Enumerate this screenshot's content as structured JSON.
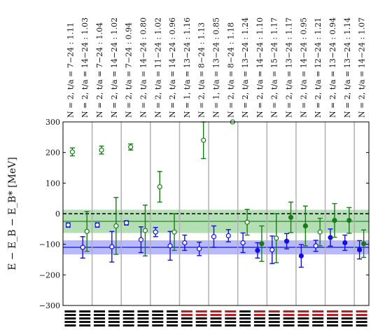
{
  "chart_data": {
    "type": "scatter",
    "title": "",
    "xlabel": "",
    "ylabel": "E − E_B − E_B* [MeV]",
    "ylim": [
      -300,
      300
    ],
    "yticks": [
      "−300",
      "−200",
      "−100",
      "0",
      "100",
      "200",
      "300"
    ],
    "grid": false,
    "colors": {
      "blue": "#1010e0",
      "green": "#1a7a1a",
      "band_blue": "#8080ff",
      "band_green": "#77c477",
      "frame": "#000000",
      "sep": "#b0b0b0"
    },
    "bands": [
      {
        "name": "",
        "color": "blue",
        "center": -110,
        "low": -133,
        "high": -87
      },
      {
        "name": "",
        "color": "green",
        "center": -25,
        "low": -63,
        "high": 13
      }
    ],
    "reference_line": 0,
    "fits": [
      {
        "label": "N = 2, t/a = 7−24 : 1.11",
        "points": [
          {
            "color": "blue",
            "y": -37,
            "err": 7,
            "filled": false
          },
          {
            "color": "green",
            "y": 202,
            "err": 13,
            "filled": false
          }
        ]
      },
      {
        "label": "N = 2, t/a = 14−24 : 1.03",
        "points": [
          {
            "color": "blue",
            "y": -110,
            "err": 35,
            "filled": false
          },
          {
            "color": "green",
            "y": -58,
            "err": 65,
            "filled": false
          }
        ]
      },
      {
        "label": "N = 2, t/a = 7−24 : 1.04",
        "points": [
          {
            "color": "blue",
            "y": -37,
            "err": 7,
            "filled": false
          },
          {
            "color": "green",
            "y": 208,
            "err": 13,
            "filled": false
          }
        ]
      },
      {
        "label": "N = 2, t/a = 14−24 : 1.02",
        "points": [
          {
            "color": "blue",
            "y": -108,
            "err": 50,
            "filled": false
          },
          {
            "color": "green",
            "y": -40,
            "err": 93,
            "filled": false
          }
        ]
      },
      {
        "label": "N = 2, t/a = 7−24 : 0.94",
        "points": [
          {
            "color": "blue",
            "y": -30,
            "err": 7,
            "filled": false
          },
          {
            "color": "green",
            "y": 218,
            "err": 10,
            "filled": false
          }
        ]
      },
      {
        "label": "N = 2, t/a = 14−24 : 0.80",
        "points": [
          {
            "color": "blue",
            "y": -85,
            "err": 42,
            "filled": false
          },
          {
            "color": "green",
            "y": -55,
            "err": 83,
            "filled": false
          }
        ]
      },
      {
        "label": "N = 2, t/a = 11−24 : 1.02",
        "points": [
          {
            "color": "blue",
            "y": -60,
            "err": 15,
            "filled": false
          },
          {
            "color": "green",
            "y": 88,
            "err": 50,
            "filled": false
          }
        ]
      },
      {
        "label": "N = 2, t/a = 14−24 : 0.96",
        "points": [
          {
            "color": "blue",
            "y": -105,
            "err": 47,
            "filled": false
          },
          {
            "color": "green",
            "y": -60,
            "err": 60,
            "filled": false
          }
        ]
      },
      {
        "label": "N = 1, t/a = 13−24 : 1.16",
        "points": [
          {
            "color": "blue",
            "y": -95,
            "err": 25,
            "filled": false
          }
        ]
      },
      {
        "label": "N = 2, t/a = 8−24 : 1.13",
        "points": [
          {
            "color": "blue",
            "y": -115,
            "err": 22,
            "filled": false
          },
          {
            "color": "green",
            "y": 240,
            "err": 60,
            "filled": false
          }
        ]
      },
      {
        "label": "N = 1, t/a = 13−24 : 0.85",
        "points": [
          {
            "color": "blue",
            "y": -75,
            "err": 35,
            "filled": false
          }
        ]
      },
      {
        "label": "N = 2, t/a = 8−24 : 1.18",
        "points": [
          {
            "color": "blue",
            "y": -72,
            "err": 20,
            "filled": false
          },
          {
            "color": "green",
            "y": 300,
            "err": 3,
            "filled": false
          }
        ]
      },
      {
        "label": "N = 2, t/a = 13−24 : 1.24",
        "points": [
          {
            "color": "blue",
            "y": -95,
            "err": 32,
            "filled": false
          },
          {
            "color": "green",
            "y": -28,
            "err": 42,
            "filled": false
          }
        ]
      },
      {
        "label": "N = 2, t/a = 14−24 : 1.10",
        "points": [
          {
            "color": "blue",
            "y": -120,
            "err": 25,
            "filled": true
          },
          {
            "color": "green",
            "y": -98,
            "err": 58,
            "filled": true
          }
        ]
      },
      {
        "label": "N = 2, t/a = 15−24 : 1.17",
        "points": [
          {
            "color": "blue",
            "y": -118,
            "err": 45,
            "filled": false
          },
          {
            "color": "green",
            "y": -80,
            "err": 80,
            "filled": false
          }
        ]
      },
      {
        "label": "N = 2, t/a = 13−24 : 1.17",
        "points": [
          {
            "color": "blue",
            "y": -90,
            "err": 25,
            "filled": true
          },
          {
            "color": "green",
            "y": -12,
            "err": 50,
            "filled": true
          }
        ]
      },
      {
        "label": "N = 2, t/a = 14−24 : 0.95",
        "points": [
          {
            "color": "blue",
            "y": -138,
            "err": 37,
            "filled": true
          },
          {
            "color": "green",
            "y": -40,
            "err": 65,
            "filled": true
          }
        ]
      },
      {
        "label": "N = 2, t/a = 12−24 : 1.21",
        "points": [
          {
            "color": "blue",
            "y": -105,
            "err": 18,
            "filled": false
          },
          {
            "color": "green",
            "y": -60,
            "err": 45,
            "filled": false
          }
        ]
      },
      {
        "label": "N = 2, t/a = 13−24 : 0.94",
        "points": [
          {
            "color": "blue",
            "y": -78,
            "err": 28,
            "filled": true
          },
          {
            "color": "green",
            "y": -22,
            "err": 55,
            "filled": true
          }
        ]
      },
      {
        "label": "N = 2, t/a = 13−24 : 1.14",
        "points": [
          {
            "color": "blue",
            "y": -95,
            "err": 25,
            "filled": true
          },
          {
            "color": "green",
            "y": -22,
            "err": 42,
            "filled": true
          }
        ]
      },
      {
        "label": "N = 2, t/a = 14−24 : 1.07",
        "points": [
          {
            "color": "blue",
            "y": -118,
            "err": 30,
            "filled": true
          },
          {
            "color": "green",
            "y": -98,
            "err": 45,
            "filled": true
          }
        ]
      }
    ],
    "operator_bars": [
      "kkkkk",
      "kkkkk",
      "kkkkk",
      "kkkkk",
      "kkkkk",
      "kkkkk",
      "kkkkk",
      "kkkkk",
      "rrkkk",
      "rrkkk",
      "rrkkk",
      "rrkkk",
      "kkkkk",
      "rrkkk",
      "rkkkk",
      "rrkkk",
      "rrkkk",
      "rrkkk",
      "rrkkk",
      "rrkkk",
      "rrkkk"
    ]
  }
}
